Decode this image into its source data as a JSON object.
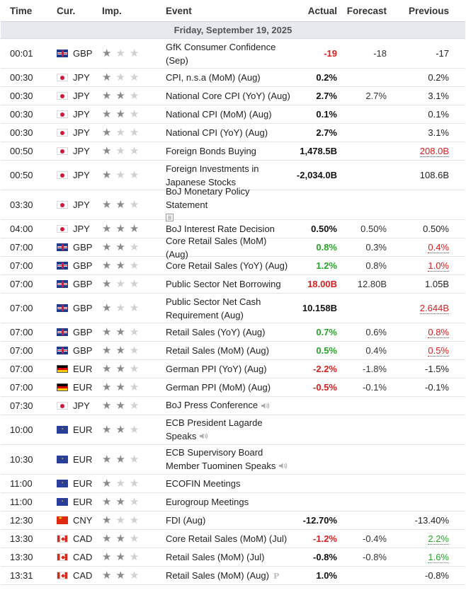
{
  "header": {
    "time": "Time",
    "currency": "Cur.",
    "importance": "Imp.",
    "event": "Event",
    "actual": "Actual",
    "forecast": "Forecast",
    "previous": "Previous"
  },
  "day": "Friday, September 19, 2025",
  "colors": {
    "negative": "#d42020",
    "positive": "#27a327",
    "star_on": "#8a8a8a",
    "star_off": "#d0d0d0"
  },
  "rows": [
    {
      "time": "00:01",
      "flag": "GBP",
      "cur": "GBP",
      "imp": 1,
      "event": "GfK Consumer Confidence (Sep)",
      "actual": "-19",
      "actual_color": "red",
      "forecast": "-18",
      "previous": "-17",
      "prev_color": "",
      "lines": 2,
      "icon": ""
    },
    {
      "time": "00:30",
      "flag": "JPY",
      "cur": "JPY",
      "imp": 1,
      "event": "CPI, n.s.a (MoM) (Aug)",
      "actual": "0.2%",
      "actual_color": "",
      "forecast": "",
      "previous": "0.2%",
      "prev_color": "",
      "lines": 1,
      "icon": ""
    },
    {
      "time": "00:30",
      "flag": "JPY",
      "cur": "JPY",
      "imp": 2,
      "event": "National Core CPI (YoY) (Aug)",
      "actual": "2.7%",
      "actual_color": "",
      "forecast": "2.7%",
      "previous": "3.1%",
      "prev_color": "",
      "lines": 1,
      "icon": ""
    },
    {
      "time": "00:30",
      "flag": "JPY",
      "cur": "JPY",
      "imp": 2,
      "event": "National CPI (MoM) (Aug)",
      "actual": "0.1%",
      "actual_color": "",
      "forecast": "",
      "previous": "0.1%",
      "prev_color": "",
      "lines": 1,
      "icon": ""
    },
    {
      "time": "00:30",
      "flag": "JPY",
      "cur": "JPY",
      "imp": 1,
      "event": "National CPI (YoY) (Aug)",
      "actual": "2.7%",
      "actual_color": "",
      "forecast": "",
      "previous": "3.1%",
      "prev_color": "",
      "lines": 1,
      "icon": ""
    },
    {
      "time": "00:50",
      "flag": "JPY",
      "cur": "JPY",
      "imp": 1,
      "event": "Foreign Bonds Buying",
      "actual": "1,478.5B",
      "actual_color": "",
      "forecast": "",
      "previous": "208.0B",
      "prev_color": "red",
      "lines": 1,
      "icon": ""
    },
    {
      "time": "00:50",
      "flag": "JPY",
      "cur": "JPY",
      "imp": 1,
      "event": "Foreign Investments in Japanese Stocks",
      "actual": "-2,034.0B",
      "actual_color": "",
      "forecast": "",
      "previous": "108.6B",
      "prev_color": "",
      "lines": 2,
      "icon": ""
    },
    {
      "time": "03:30",
      "flag": "JPY",
      "cur": "JPY",
      "imp": 2,
      "event": "BoJ Monetary Policy Statement",
      "actual": "",
      "actual_color": "",
      "forecast": "",
      "previous": "",
      "prev_color": "",
      "lines": 2,
      "icon": "document"
    },
    {
      "time": "04:00",
      "flag": "JPY",
      "cur": "JPY",
      "imp": 3,
      "event": "BoJ Interest Rate Decision",
      "actual": "0.50%",
      "actual_color": "",
      "forecast": "0.50%",
      "previous": "0.50%",
      "prev_color": "",
      "lines": 1,
      "icon": ""
    },
    {
      "time": "07:00",
      "flag": "GBP",
      "cur": "GBP",
      "imp": 2,
      "event": "Core Retail Sales (MoM) (Aug)",
      "actual": "0.8%",
      "actual_color": "green",
      "forecast": "0.3%",
      "previous": "0.4%",
      "prev_color": "red",
      "lines": 1,
      "icon": ""
    },
    {
      "time": "07:00",
      "flag": "GBP",
      "cur": "GBP",
      "imp": 2,
      "event": "Core Retail Sales (YoY) (Aug)",
      "actual": "1.2%",
      "actual_color": "green",
      "forecast": "0.8%",
      "previous": "1.0%",
      "prev_color": "red",
      "lines": 1,
      "icon": ""
    },
    {
      "time": "07:00",
      "flag": "GBP",
      "cur": "GBP",
      "imp": 1,
      "event": "Public Sector Net Borrowing",
      "actual": "18.00B",
      "actual_color": "red",
      "forecast": "12.80B",
      "previous": "1.05B",
      "prev_color": "",
      "lines": 1,
      "icon": ""
    },
    {
      "time": "07:00",
      "flag": "GBP",
      "cur": "GBP",
      "imp": 1,
      "event": "Public Sector Net Cash Requirement (Aug)",
      "actual": "10.158B",
      "actual_color": "",
      "forecast": "",
      "previous": "2.644B",
      "prev_color": "red",
      "lines": 2,
      "icon": ""
    },
    {
      "time": "07:00",
      "flag": "GBP",
      "cur": "GBP",
      "imp": 2,
      "event": "Retail Sales (YoY) (Aug)",
      "actual": "0.7%",
      "actual_color": "green",
      "forecast": "0.6%",
      "previous": "0.8%",
      "prev_color": "red",
      "lines": 1,
      "icon": ""
    },
    {
      "time": "07:00",
      "flag": "GBP",
      "cur": "GBP",
      "imp": 2,
      "event": "Retail Sales (MoM) (Aug)",
      "actual": "0.5%",
      "actual_color": "green",
      "forecast": "0.4%",
      "previous": "0.5%",
      "prev_color": "red",
      "lines": 1,
      "icon": ""
    },
    {
      "time": "07:00",
      "flag": "DE",
      "cur": "EUR",
      "imp": 2,
      "event": "German PPI (YoY) (Aug)",
      "actual": "-2.2%",
      "actual_color": "red",
      "forecast": "-1.8%",
      "previous": "-1.5%",
      "prev_color": "",
      "lines": 1,
      "icon": ""
    },
    {
      "time": "07:00",
      "flag": "DE",
      "cur": "EUR",
      "imp": 2,
      "event": "German PPI (MoM) (Aug)",
      "actual": "-0.5%",
      "actual_color": "red",
      "forecast": "-0.1%",
      "previous": "-0.1%",
      "prev_color": "",
      "lines": 1,
      "icon": ""
    },
    {
      "time": "07:30",
      "flag": "JPY",
      "cur": "JPY",
      "imp": 2,
      "event": "BoJ Press Conference",
      "actual": "",
      "actual_color": "",
      "forecast": "",
      "previous": "",
      "prev_color": "",
      "lines": 1,
      "icon": "speaker"
    },
    {
      "time": "10:00",
      "flag": "EUR",
      "cur": "EUR",
      "imp": 2,
      "event": "ECB President Lagarde Speaks",
      "actual": "",
      "actual_color": "",
      "forecast": "",
      "previous": "",
      "prev_color": "",
      "lines": 2,
      "icon": "speaker"
    },
    {
      "time": "10:30",
      "flag": "EUR",
      "cur": "EUR",
      "imp": 2,
      "event": "ECB Supervisory Board Member Tuominen Speaks",
      "actual": "",
      "actual_color": "",
      "forecast": "",
      "previous": "",
      "prev_color": "",
      "lines": 2,
      "icon": "speaker"
    },
    {
      "time": "11:00",
      "flag": "EUR",
      "cur": "EUR",
      "imp": 1,
      "event": "ECOFIN Meetings",
      "actual": "",
      "actual_color": "",
      "forecast": "",
      "previous": "",
      "prev_color": "",
      "lines": 1,
      "icon": ""
    },
    {
      "time": "11:00",
      "flag": "EUR",
      "cur": "EUR",
      "imp": 2,
      "event": "Eurogroup Meetings",
      "actual": "",
      "actual_color": "",
      "forecast": "",
      "previous": "",
      "prev_color": "",
      "lines": 1,
      "icon": ""
    },
    {
      "time": "12:30",
      "flag": "CNY",
      "cur": "CNY",
      "imp": 1,
      "event": "FDI (Aug)",
      "actual": "-12.70%",
      "actual_color": "",
      "forecast": "",
      "previous": "-13.40%",
      "prev_color": "",
      "lines": 1,
      "icon": ""
    },
    {
      "time": "13:30",
      "flag": "CAD",
      "cur": "CAD",
      "imp": 2,
      "event": "Core Retail Sales (MoM) (Jul)",
      "actual": "-1.2%",
      "actual_color": "red",
      "forecast": "-0.4%",
      "previous": "2.2%",
      "prev_color": "green",
      "lines": 1,
      "icon": ""
    },
    {
      "time": "13:30",
      "flag": "CAD",
      "cur": "CAD",
      "imp": 2,
      "event": "Retail Sales (MoM) (Jul)",
      "actual": "-0.8%",
      "actual_color": "",
      "forecast": "-0.8%",
      "previous": "1.6%",
      "prev_color": "green",
      "lines": 1,
      "icon": ""
    },
    {
      "time": "13:31",
      "flag": "CAD",
      "cur": "CAD",
      "imp": 2,
      "event": "Retail Sales (MoM) (Aug)",
      "actual": "1.0%",
      "actual_color": "",
      "forecast": "",
      "previous": "-0.8%",
      "prev_color": "",
      "lines": 1,
      "icon": "preliminary"
    }
  ]
}
